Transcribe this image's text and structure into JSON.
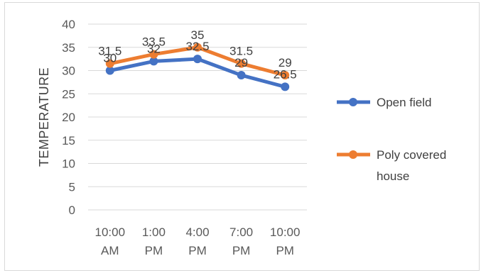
{
  "chart_data": {
    "type": "line",
    "title": "",
    "xlabel": "",
    "ylabel": "TEMPERATURE",
    "ylim": [
      0,
      40
    ],
    "ytick_step": 5,
    "grid": true,
    "legend_position": "right",
    "categories": [
      [
        "10:00",
        "AM"
      ],
      [
        "1:00",
        "PM"
      ],
      [
        "4:00",
        "PM"
      ],
      [
        "7:00",
        "PM"
      ],
      [
        "10:00",
        "PM"
      ]
    ],
    "series": [
      {
        "name": "Open field",
        "color": "#4472c4",
        "values": [
          30,
          32,
          32.5,
          29,
          26.5
        ]
      },
      {
        "name": "Poly covered house",
        "color": "#ed7d31",
        "values": [
          31.5,
          33.5,
          35,
          31.5,
          29
        ]
      }
    ]
  }
}
